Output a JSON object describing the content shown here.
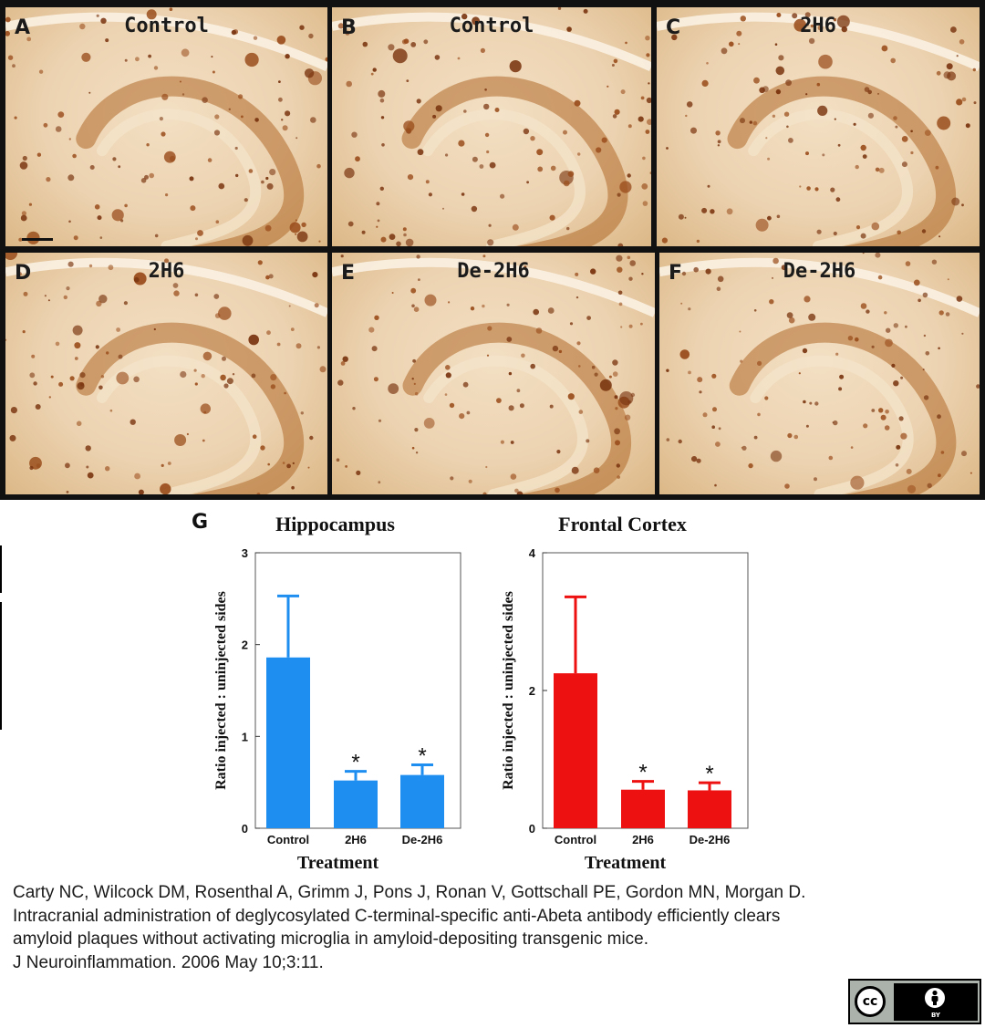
{
  "panels": [
    {
      "letter": "A",
      "title": "Control"
    },
    {
      "letter": "B",
      "title": "Control"
    },
    {
      "letter": "C",
      "title": "2H6"
    },
    {
      "letter": "D",
      "title": "2H6"
    },
    {
      "letter": "E",
      "title": "De-2H6"
    },
    {
      "letter": "F",
      "title": "De-2H6"
    }
  ],
  "figure_letter": "G",
  "colors": {
    "hippocampus_bar": "#1f8ef1",
    "cortex_bar": "#ee1111"
  },
  "chart_data": [
    {
      "type": "bar",
      "title": "Hippocampus",
      "xlabel": "Treatment",
      "ylabel": "Ratio injected : uninjected sides",
      "categories": [
        "Control",
        "2H6",
        "De-2H6"
      ],
      "values": [
        1.86,
        0.52,
        0.58
      ],
      "error_upper": [
        2.53,
        0.62,
        0.69
      ],
      "significance": [
        "",
        "*",
        "*"
      ],
      "ylim": [
        0,
        3
      ],
      "yticks": [
        0,
        1,
        2,
        3
      ],
      "color": "#1f8ef1"
    },
    {
      "type": "bar",
      "title": "Frontal Cortex",
      "xlabel": "Treatment",
      "ylabel": "Ratio injected : uninjected sides",
      "categories": [
        "Control",
        "2H6",
        "De-2H6"
      ],
      "values": [
        2.25,
        0.56,
        0.55
      ],
      "error_upper": [
        3.36,
        0.68,
        0.66
      ],
      "significance": [
        "",
        "*",
        "*"
      ],
      "ylim": [
        0,
        4
      ],
      "yticks": [
        0,
        2,
        4
      ],
      "color": "#ee1111"
    }
  ],
  "citation": {
    "authors": "Carty NC, Wilcock DM, Rosenthal A, Grimm J, Pons J, Ronan V, Gottschall PE, Gordon MN, Morgan D.",
    "title": "Intracranial administration of deglycosylated C-terminal-specific anti-Abeta antibody efficiently clears amyloid plaques without activating microglia in amyloid-depositing transgenic mice.",
    "journal": "J Neuroinflammation. 2006 May 10;3:11."
  },
  "license": {
    "cc_text": "cc",
    "by_text": "BY"
  }
}
